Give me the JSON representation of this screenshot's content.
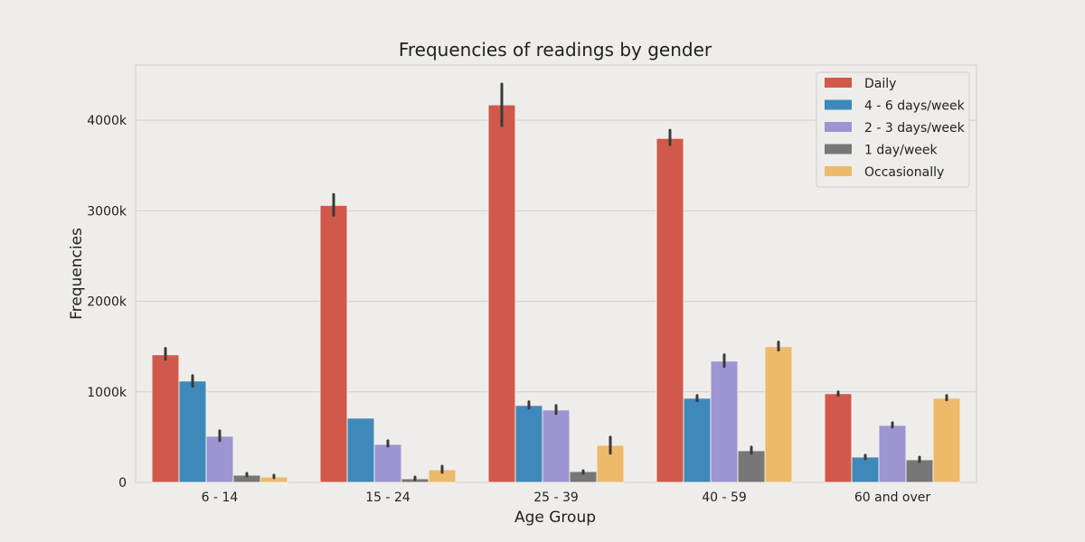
{
  "chart_data": {
    "type": "bar",
    "title": "Frequencies of readings by gender",
    "xlabel": "Age Group",
    "ylabel": "Frequencies",
    "ylim": [
      0,
      4610
    ],
    "yticks": [
      {
        "value": 0,
        "label": "0"
      },
      {
        "value": 1000,
        "label": "1000k"
      },
      {
        "value": 2000,
        "label": "2000k"
      },
      {
        "value": 3000,
        "label": "3000k"
      },
      {
        "value": 4000,
        "label": "4000k"
      }
    ],
    "grid": true,
    "legend_position": "top-right",
    "categories": [
      "6 - 14",
      "15 - 24",
      "25 - 39",
      "40 - 59",
      "60 and over"
    ],
    "series": [
      {
        "name": "Daily",
        "color": "#d1594a",
        "values": [
          1410,
          3060,
          4170,
          3800,
          980
        ],
        "err_low": [
          1360,
          2950,
          3940,
          3730,
          960
        ],
        "err_high": [
          1480,
          3180,
          4400,
          3890,
          1000
        ]
      },
      {
        "name": "4 - 6 days/week",
        "color": "#3f89ba",
        "values": [
          1120,
          710,
          850,
          930,
          280
        ],
        "err_low": [
          1060,
          710,
          820,
          900,
          260
        ],
        "err_high": [
          1180,
          710,
          890,
          960,
          300
        ]
      },
      {
        "name": "2 - 3 days/week",
        "color": "#9d94d2",
        "values": [
          510,
          420,
          800,
          1340,
          630
        ],
        "err_low": [
          460,
          400,
          760,
          1280,
          610
        ],
        "err_high": [
          570,
          460,
          850,
          1410,
          660
        ]
      },
      {
        "name": "1 day/week",
        "color": "#777777",
        "values": [
          80,
          40,
          120,
          350,
          250
        ],
        "err_low": [
          70,
          30,
          100,
          320,
          230
        ],
        "err_high": [
          100,
          60,
          130,
          390,
          280
        ]
      },
      {
        "name": "Occasionally",
        "color": "#edba6a",
        "values": [
          60,
          140,
          410,
          1500,
          930
        ],
        "err_low": [
          50,
          110,
          320,
          1460,
          910
        ],
        "err_high": [
          80,
          180,
          500,
          1550,
          960
        ]
      }
    ]
  }
}
